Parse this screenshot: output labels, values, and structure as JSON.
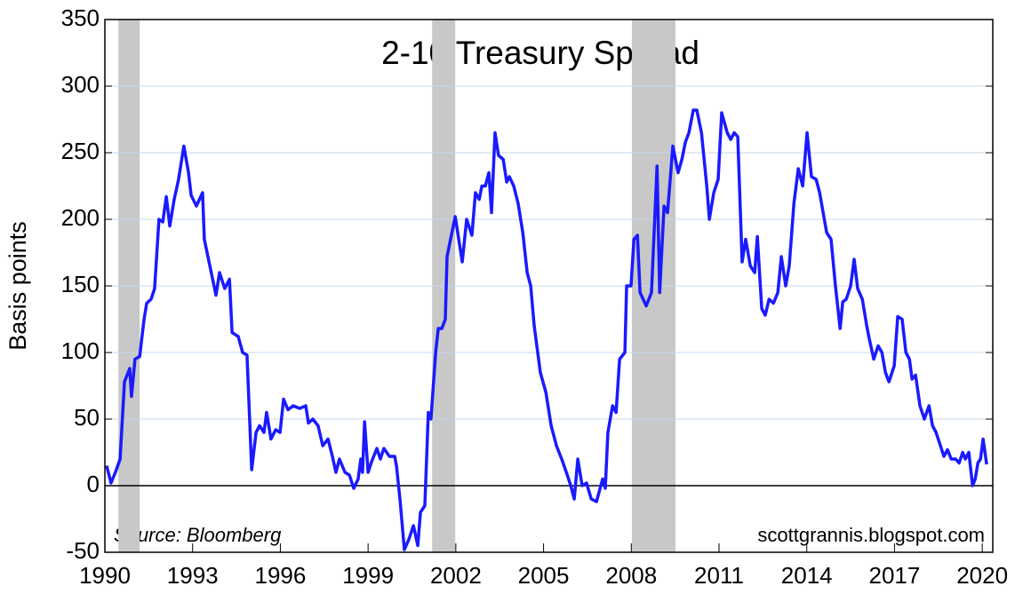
{
  "chart_data": {
    "type": "line",
    "title": "2-10 Treasury Spread",
    "ylabel": "Basis points",
    "annotations": [
      "Source:  Bloomberg",
      "scottgrannis.blogspot.com"
    ],
    "xlim": [
      1990,
      2020.36
    ],
    "ylim": [
      -50,
      350
    ],
    "xticks": [
      1990,
      1993,
      1996,
      1999,
      2002,
      2005,
      2008,
      2011,
      2014,
      2017,
      2020
    ],
    "yticks": [
      -50,
      0,
      50,
      100,
      150,
      200,
      250,
      300,
      350
    ],
    "grid": true,
    "zero_line": 0,
    "shaded_ranges": [
      [
        1990.46,
        1991.19
      ],
      [
        2001.19,
        2001.98
      ],
      [
        2008.02,
        2009.51
      ]
    ],
    "shade_color": "#c8c8c8",
    "x": [
      1990.06,
      1990.21,
      1990.36,
      1990.52,
      1990.67,
      1990.85,
      1990.91,
      1991.03,
      1991.19,
      1991.34,
      1991.43,
      1991.58,
      1991.7,
      1991.85,
      1991.98,
      1992.1,
      1992.22,
      1992.37,
      1992.52,
      1992.7,
      1992.86,
      1992.95,
      1993.13,
      1993.34,
      1993.4,
      1993.59,
      1993.8,
      1993.92,
      1994.1,
      1994.26,
      1994.35,
      1994.56,
      1994.71,
      1994.86,
      1995.02,
      1995.17,
      1995.29,
      1995.44,
      1995.53,
      1995.68,
      1995.84,
      1995.99,
      1996.11,
      1996.26,
      1996.44,
      1996.66,
      1996.87,
      1996.96,
      1997.11,
      1997.29,
      1997.45,
      1997.63,
      1997.78,
      1997.9,
      1998.02,
      1998.21,
      1998.36,
      1998.51,
      1998.66,
      1998.75,
      1998.81,
      1998.88,
      1999.0,
      1999.12,
      1999.3,
      1999.42,
      1999.54,
      1999.73,
      1999.91,
      1999.97,
      2000.09,
      2000.24,
      2000.4,
      2000.55,
      2000.7,
      2000.79,
      2000.94,
      2001.06,
      2001.15,
      2001.31,
      2001.4,
      2001.52,
      2001.64,
      2001.7,
      2001.82,
      2001.98,
      2002.1,
      2002.22,
      2002.37,
      2002.55,
      2002.67,
      2002.8,
      2002.89,
      2003.01,
      2003.13,
      2003.22,
      2003.34,
      2003.46,
      2003.62,
      2003.74,
      2003.83,
      2003.98,
      2004.13,
      2004.29,
      2004.44,
      2004.56,
      2004.68,
      2004.89,
      2005.08,
      2005.26,
      2005.44,
      2005.62,
      2005.78,
      2005.93,
      2006.05,
      2006.17,
      2006.32,
      2006.47,
      2006.63,
      2006.81,
      2007.02,
      2007.11,
      2007.2,
      2007.36,
      2007.48,
      2007.6,
      2007.78,
      2007.84,
      2007.99,
      2008.09,
      2008.21,
      2008.3,
      2008.51,
      2008.69,
      2008.88,
      2008.97,
      2009.12,
      2009.24,
      2009.42,
      2009.6,
      2009.73,
      2009.85,
      2009.97,
      2010.12,
      2010.24,
      2010.4,
      2010.58,
      2010.67,
      2010.82,
      2010.97,
      2011.09,
      2011.28,
      2011.4,
      2011.52,
      2011.64,
      2011.79,
      2011.91,
      2012.07,
      2012.22,
      2012.31,
      2012.46,
      2012.58,
      2012.71,
      2012.86,
      2013.01,
      2013.13,
      2013.28,
      2013.4,
      2013.56,
      2013.71,
      2013.86,
      2014.01,
      2014.16,
      2014.32,
      2014.44,
      2014.56,
      2014.68,
      2014.83,
      2014.98,
      2015.14,
      2015.23,
      2015.35,
      2015.5,
      2015.62,
      2015.74,
      2015.9,
      2016.05,
      2016.14,
      2016.29,
      2016.44,
      2016.57,
      2016.69,
      2016.81,
      2016.99,
      2017.11,
      2017.26,
      2017.39,
      2017.51,
      2017.6,
      2017.72,
      2017.87,
      2018.02,
      2018.18,
      2018.3,
      2018.42,
      2018.57,
      2018.69,
      2018.81,
      2018.94,
      2019.09,
      2019.21,
      2019.33,
      2019.42,
      2019.54,
      2019.67,
      2019.76,
      2019.85,
      2019.94,
      2020.03,
      2020.15
    ],
    "series": [
      {
        "name": "2-10 Treasury Spread",
        "color": "#1a1aff",
        "values": [
          15,
          2,
          10,
          20,
          78,
          88,
          67,
          95,
          97,
          125,
          137,
          140,
          148,
          200,
          198,
          217,
          195,
          215,
          230,
          255,
          235,
          218,
          210,
          220,
          185,
          165,
          143,
          160,
          148,
          155,
          115,
          112,
          100,
          98,
          12,
          40,
          45,
          40,
          55,
          35,
          42,
          40,
          65,
          57,
          60,
          58,
          60,
          47,
          50,
          45,
          30,
          35,
          22,
          10,
          20,
          10,
          8,
          -2,
          5,
          20,
          10,
          48,
          10,
          18,
          28,
          20,
          28,
          22,
          22,
          15,
          -10,
          -48,
          -40,
          -30,
          -45,
          -20,
          -15,
          55,
          50,
          100,
          118,
          118,
          125,
          172,
          185,
          202,
          185,
          168,
          200,
          188,
          220,
          215,
          225,
          225,
          235,
          205,
          265,
          248,
          245,
          228,
          232,
          225,
          212,
          190,
          160,
          150,
          120,
          85,
          70,
          45,
          30,
          20,
          10,
          0,
          -10,
          20,
          0,
          2,
          -10,
          -12,
          5,
          -2,
          40,
          60,
          55,
          95,
          100,
          150,
          150,
          185,
          188,
          145,
          135,
          145,
          240,
          145,
          210,
          205,
          255,
          235,
          245,
          258,
          265,
          282,
          282,
          265,
          225,
          200,
          220,
          230,
          280,
          265,
          260,
          265,
          262,
          168,
          185,
          165,
          160,
          187,
          133,
          128,
          140,
          137,
          145,
          172,
          150,
          165,
          212,
          238,
          225,
          265,
          232,
          230,
          220,
          205,
          190,
          185,
          150,
          118,
          138,
          140,
          150,
          170,
          148,
          140,
          120,
          110,
          95,
          105,
          100,
          85,
          78,
          90,
          127,
          125,
          100,
          95,
          80,
          83,
          60,
          50,
          60,
          45,
          40,
          30,
          22,
          27,
          20,
          20,
          17,
          25,
          20,
          25,
          0,
          5,
          17,
          20,
          35,
          16
        ]
      }
    ]
  }
}
